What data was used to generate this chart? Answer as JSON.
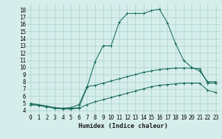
{
  "title": "",
  "xlabel": "Humidex (Indice chaleur)",
  "xlim": [
    -0.5,
    23.5
  ],
  "ylim": [
    3.5,
    18.8
  ],
  "xticks": [
    0,
    1,
    2,
    3,
    4,
    5,
    6,
    7,
    8,
    9,
    10,
    11,
    12,
    13,
    14,
    15,
    16,
    17,
    18,
    19,
    20,
    21,
    22,
    23
  ],
  "yticks": [
    4,
    5,
    6,
    7,
    8,
    9,
    10,
    11,
    12,
    13,
    14,
    15,
    16,
    17,
    18
  ],
  "bg_color": "#d6eeeb",
  "grid_color": "#aed4cf",
  "line_color": "#1a6b5a",
  "curve1_x": [
    0,
    1,
    2,
    3,
    4,
    5,
    6,
    7,
    8,
    9,
    10,
    11,
    12,
    13,
    14,
    15,
    16,
    17,
    18,
    19,
    20,
    21,
    22,
    23
  ],
  "curve1_y": [
    5.0,
    4.8,
    4.6,
    4.4,
    4.3,
    4.3,
    4.4,
    7.2,
    10.8,
    13.0,
    13.0,
    16.3,
    17.5,
    17.5,
    17.5,
    17.9,
    18.1,
    16.2,
    13.3,
    11.0,
    10.0,
    9.5,
    8.0,
    8.0
  ],
  "curve2_x": [
    0,
    1,
    2,
    3,
    4,
    5,
    6,
    7,
    8,
    9,
    10,
    11,
    12,
    13,
    14,
    15,
    16,
    17,
    18,
    19,
    20,
    21,
    22,
    23
  ],
  "curve2_y": [
    4.8,
    4.7,
    4.5,
    4.3,
    4.3,
    4.4,
    4.8,
    7.3,
    7.5,
    7.8,
    8.1,
    8.4,
    8.7,
    9.0,
    9.3,
    9.5,
    9.7,
    9.8,
    9.9,
    9.9,
    9.9,
    9.8,
    7.8,
    7.8
  ],
  "curve3_x": [
    0,
    1,
    2,
    3,
    4,
    5,
    6,
    7,
    8,
    9,
    10,
    11,
    12,
    13,
    14,
    15,
    16,
    17,
    18,
    19,
    20,
    21,
    22,
    23
  ],
  "curve3_y": [
    4.8,
    4.7,
    4.5,
    4.3,
    4.2,
    4.2,
    4.3,
    4.8,
    5.2,
    5.5,
    5.8,
    6.1,
    6.4,
    6.7,
    7.0,
    7.3,
    7.5,
    7.6,
    7.7,
    7.8,
    7.8,
    7.8,
    6.8,
    6.5
  ],
  "tick_fontsize": 5.5,
  "xlabel_fontsize": 6.5
}
